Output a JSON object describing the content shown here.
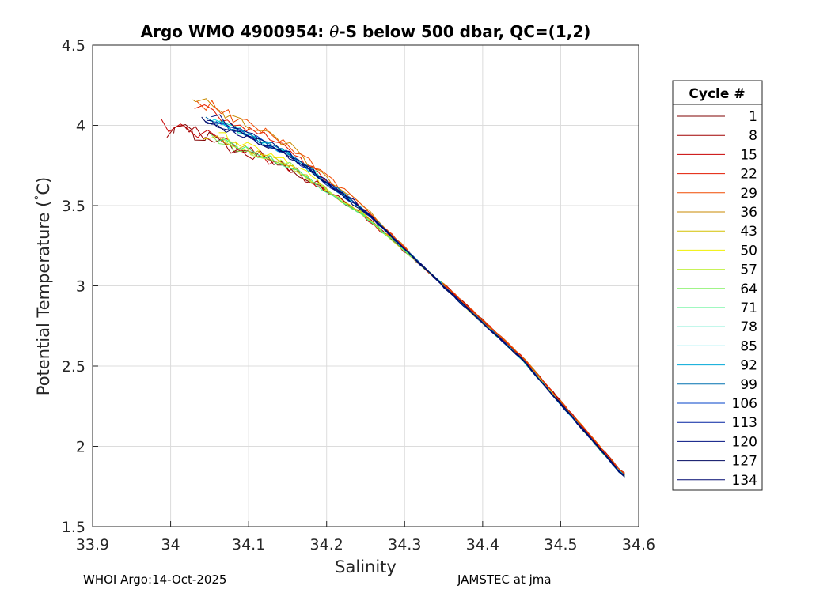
{
  "chart_data": {
    "type": "line",
    "title": "Argo WMO 4900954: θ-S below 500 dbar,  QC=(1,2)",
    "title_theta": "θ",
    "title_prefix": "Argo WMO 4900954: ",
    "title_suffix": "-S below 500 dbar,  QC=(1,2)",
    "xlabel": "Salinity",
    "ylabel": "Potential Temperature (°C)",
    "ylabel_main": "Potential Temperature (",
    "ylabel_deg": "°",
    "ylabel_unit": "C)",
    "xlim": [
      33.9,
      34.6
    ],
    "ylim": [
      1.5,
      4.5
    ],
    "xticks": [
      "33.9",
      "34",
      "34.1",
      "34.2",
      "34.3",
      "34.4",
      "34.5",
      "34.6"
    ],
    "yticks": [
      "1.5",
      "2",
      "2.5",
      "3",
      "3.5",
      "4",
      "4.5"
    ],
    "grid": true,
    "legend_title": "Cycle #",
    "legend_position": "right-outside",
    "legend": [
      {
        "label": "1",
        "color": "#7f0000"
      },
      {
        "label": "8",
        "color": "#a00000"
      },
      {
        "label": "15",
        "color": "#c80000"
      },
      {
        "label": "22",
        "color": "#e31a00"
      },
      {
        "label": "29",
        "color": "#f04a00"
      },
      {
        "label": "36",
        "color": "#c88a00"
      },
      {
        "label": "43",
        "color": "#d4c000"
      },
      {
        "label": "50",
        "color": "#f0f000"
      },
      {
        "label": "57",
        "color": "#c0f040"
      },
      {
        "label": "64",
        "color": "#80f060"
      },
      {
        "label": "71",
        "color": "#40f080"
      },
      {
        "label": "78",
        "color": "#10e0b0"
      },
      {
        "label": "85",
        "color": "#00d8e0"
      },
      {
        "label": "92",
        "color": "#00a8d8"
      },
      {
        "label": "99",
        "color": "#0070b0"
      },
      {
        "label": "106",
        "color": "#0040c8"
      },
      {
        "label": "113",
        "color": "#0020a0"
      },
      {
        "label": "120",
        "color": "#001080"
      },
      {
        "label": "127",
        "color": "#000860"
      },
      {
        "label": "134",
        "color": "#000870"
      }
    ],
    "series_profile": {
      "description": "approximate mean theta-S relation shared by all cycles",
      "S": [
        34.05,
        34.15,
        34.25,
        34.35,
        34.45,
        34.58
      ],
      "theta": [
        4.0,
        3.8,
        3.45,
        3.0,
        2.55,
        1.82
      ]
    }
  },
  "footer": {
    "left": "WHOI Argo:14-Oct-2025",
    "right": "JAMSTEC at jma"
  }
}
